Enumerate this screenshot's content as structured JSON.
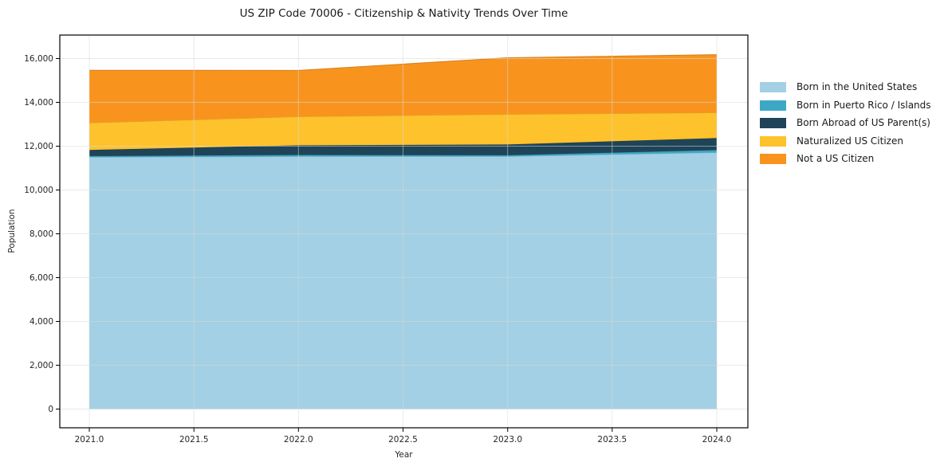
{
  "chart_data": {
    "type": "area",
    "stacked": true,
    "title": "US ZIP Code 70006 - Citizenship & Nativity Trends Over Time",
    "xlabel": "Year",
    "ylabel": "Population",
    "x": [
      2021,
      2022,
      2023,
      2024
    ],
    "series": [
      {
        "name": "Born in the United States",
        "color": "#A3D0E4",
        "values": [
          11500,
          11530,
          11530,
          11710
        ]
      },
      {
        "name": "Born in Puerto Rico / Islands",
        "color": "#3CA8C6",
        "values": [
          50,
          70,
          55,
          110
        ]
      },
      {
        "name": "Born Abroad of US Parent(s)",
        "color": "#1F4458",
        "values": [
          280,
          440,
          490,
          550
        ]
      },
      {
        "name": "Naturalized US Citizen",
        "color": "#FDC22C",
        "values": [
          1235,
          1310,
          1380,
          1160
        ]
      },
      {
        "name": "Not a US Citizen",
        "color": "#F8941E",
        "values": [
          2400,
          2110,
          2580,
          2650
        ]
      }
    ],
    "totals": [
      15465,
      15460,
      16035,
      16180
    ],
    "x_ticks": [
      "2021.0",
      "2021.5",
      "2022.0",
      "2022.5",
      "2023.0",
      "2023.5",
      "2024.0"
    ],
    "x_tick_values": [
      2021,
      2021.5,
      2022,
      2022.5,
      2023,
      2023.5,
      2024
    ],
    "y_ticks": [
      "0",
      "2,000",
      "4,000",
      "6,000",
      "8,000",
      "10,000",
      "12,000",
      "14,000",
      "16,000"
    ],
    "y_tick_values": [
      0,
      2000,
      4000,
      6000,
      8000,
      10000,
      12000,
      14000,
      16000
    ],
    "xlim": [
      2020.85,
      2024.15
    ],
    "ylim": [
      -870,
      17020
    ],
    "grid": true,
    "grid_color": "#d9d9d9",
    "axis_color": "#000000",
    "tick_label_color": "#262626",
    "legend_position": "right-outside"
  }
}
